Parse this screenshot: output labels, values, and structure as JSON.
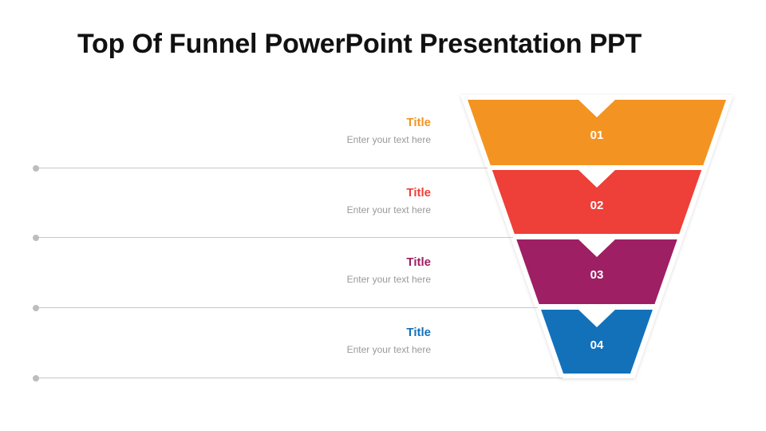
{
  "header": {
    "title": "Top Of Funnel PowerPoint Presentation PPT"
  },
  "stages": [
    {
      "number": "01",
      "title": "Title",
      "text": "Enter your text here",
      "color": "#F39422"
    },
    {
      "number": "02",
      "title": "Title",
      "text": "Enter your text here",
      "color": "#EE3F38"
    },
    {
      "number": "03",
      "title": "Title",
      "text": "Enter your text here",
      "color": "#9E1F63"
    },
    {
      "number": "04",
      "title": "Title",
      "text": "Enter your text here",
      "color": "#1371BA"
    }
  ]
}
